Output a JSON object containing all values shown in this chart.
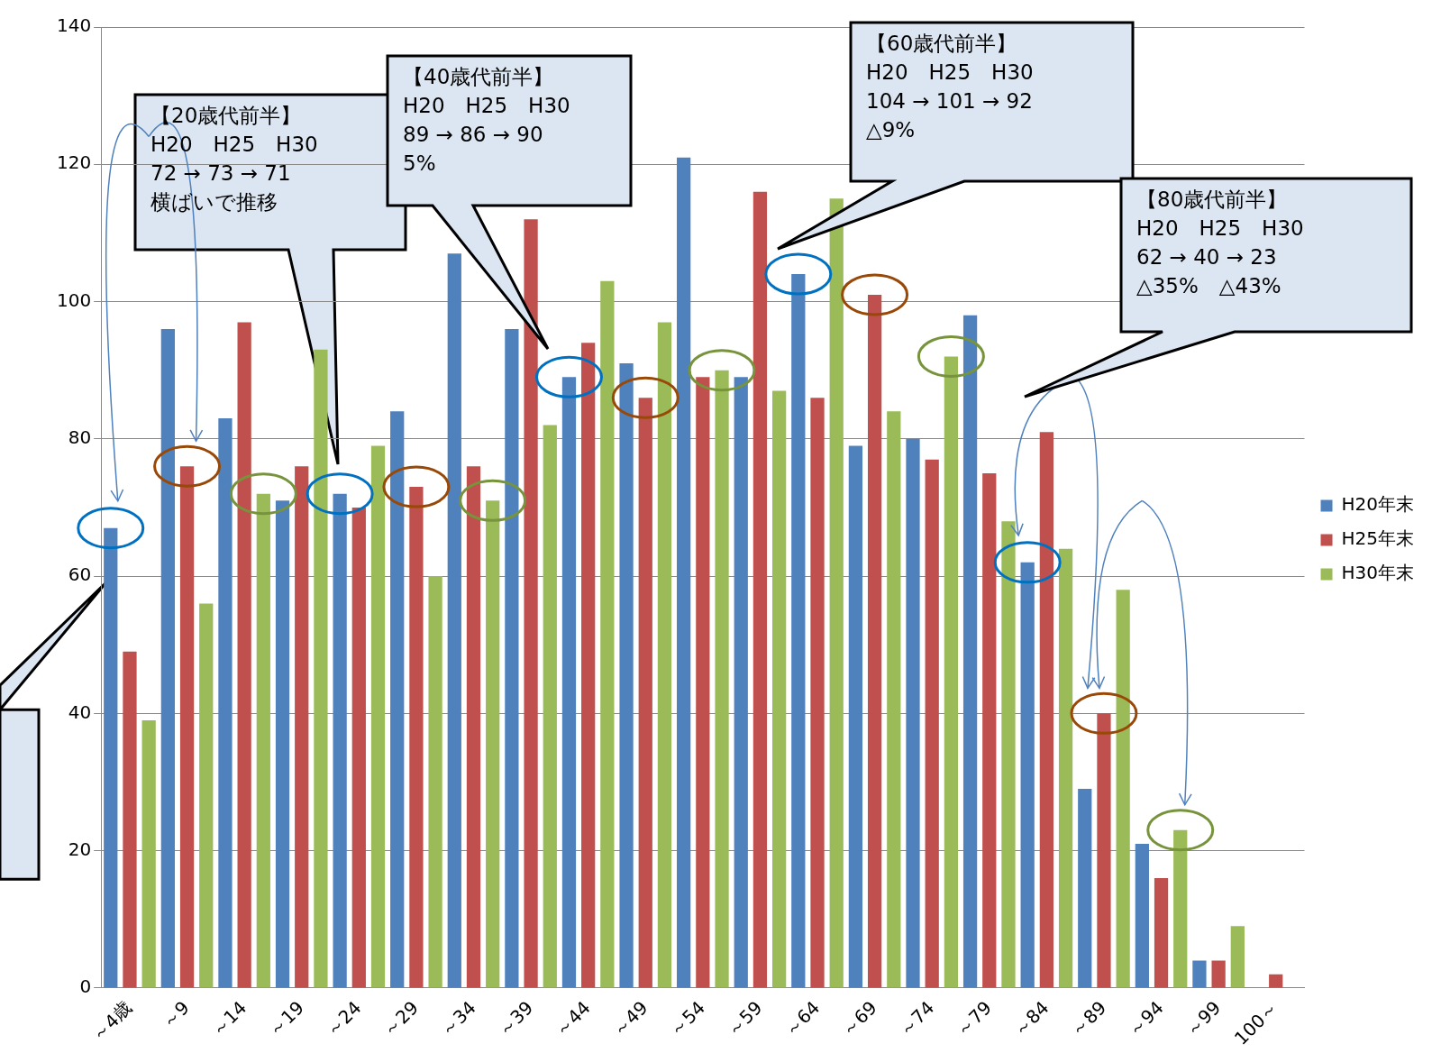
{
  "chart_data": {
    "type": "bar",
    "categories": [
      "～4歳",
      "～9",
      "～14",
      "～19",
      "～24",
      "～29",
      "～34",
      "～39",
      "～44",
      "～49",
      "～54",
      "～59",
      "～64",
      "～69",
      "～74",
      "～79",
      "～84",
      "～89",
      "～94",
      "～99",
      "100～"
    ],
    "series": [
      {
        "name": "H20年末",
        "color": "#4f81bd",
        "values": [
          67,
          96,
          83,
          71,
          72,
          84,
          107,
          96,
          89,
          91,
          121,
          89,
          104,
          79,
          80,
          98,
          62,
          29,
          21,
          4,
          0
        ]
      },
      {
        "name": "H25年末",
        "color": "#c0504d",
        "values": [
          49,
          76,
          97,
          76,
          70,
          73,
          76,
          112,
          94,
          86,
          89,
          116,
          86,
          101,
          77,
          75,
          81,
          40,
          16,
          4,
          2
        ]
      },
      {
        "name": "H30年末",
        "color": "#9bbb59",
        "values": [
          39,
          56,
          72,
          93,
          79,
          60,
          71,
          82,
          103,
          97,
          90,
          87,
          115,
          84,
          92,
          68,
          64,
          58,
          23,
          9,
          0
        ]
      }
    ],
    "ylim": [
      0,
      140
    ],
    "yticks": [
      0,
      20,
      40,
      60,
      80,
      100,
      120,
      140
    ],
    "grid": "y",
    "legend": "right",
    "annotations": [
      "【20歳代前半】\nH20　H25　H30\n72 → 73 → 71\n横ばいで推移",
      "【40歳代前半】\nH20　H25　H30\n89 → 86 → 90\n5%",
      "【60歳代前半】\nH20　H25　H30\n104 → 101 → 92\n△9%",
      "【80歳代前半】\nH20　H25　H30\n62 → 40 → 23\n△35%　△43%"
    ]
  }
}
